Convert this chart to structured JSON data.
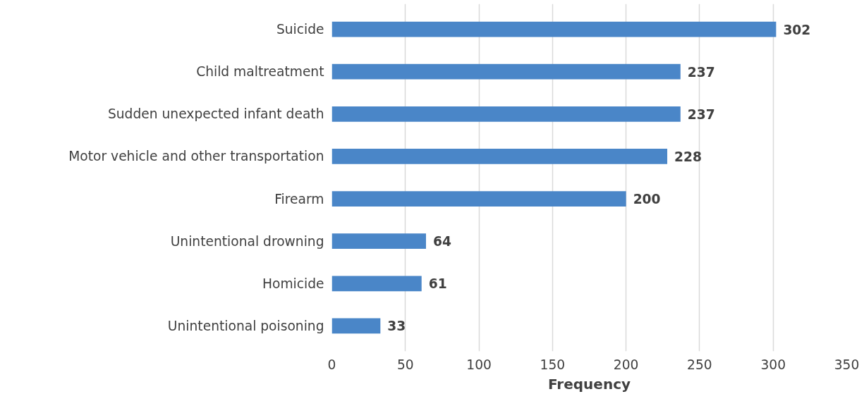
{
  "chart_data": {
    "type": "bar",
    "orientation": "horizontal",
    "xlabel": "Frequency",
    "categories": [
      "Suicide",
      "Child maltreatment",
      "Sudden unexpected infant death",
      "Motor vehicle and other transportation",
      "Firearm",
      "Unintentional drowning",
      "Homicide",
      "Unintentional poisoning"
    ],
    "values": [
      302,
      237,
      237,
      228,
      200,
      64,
      61,
      33
    ],
    "color": "#4a86c8",
    "xlim": [
      0,
      350
    ],
    "xticks": [
      0,
      50,
      100,
      150,
      200,
      250,
      300,
      350
    ],
    "grid": "x",
    "data_labels": true
  }
}
